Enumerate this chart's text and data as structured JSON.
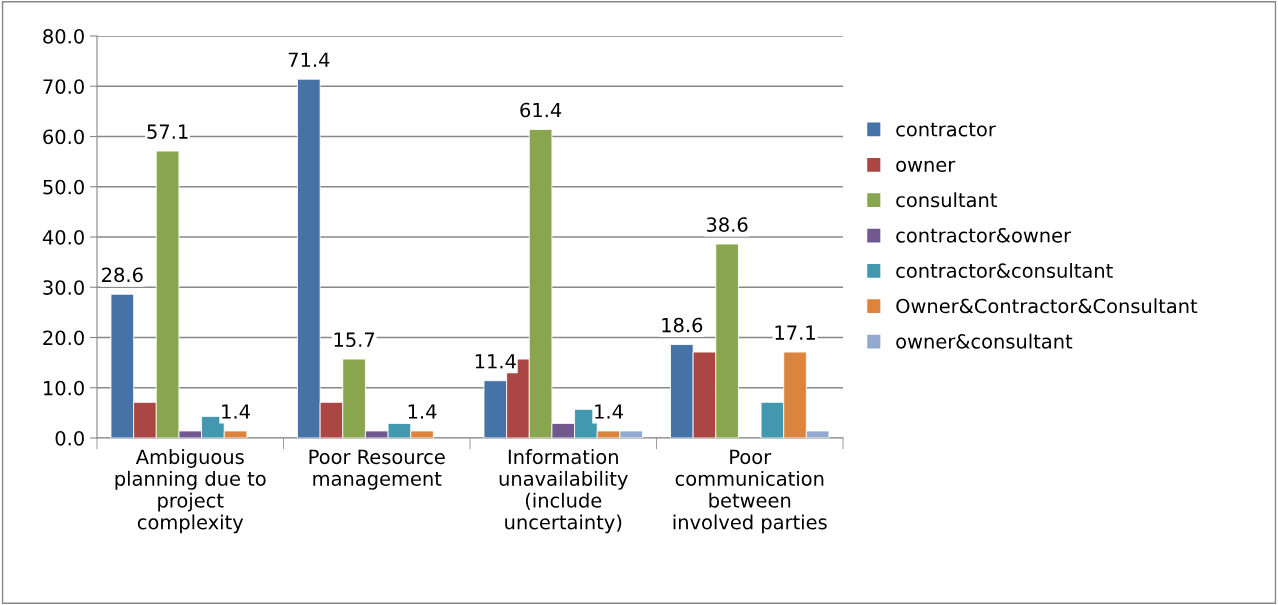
{
  "chart_data": {
    "type": "bar",
    "categories": [
      "Ambiguous\nplanning due to\nproject\ncomplexity",
      "Poor Resource\nmanagement",
      "Information\nunavailability\n(include\nuncertainty)",
      "Poor\ncommunication\nbetween\ninvolved parties"
    ],
    "series": [
      {
        "name": "contractor",
        "color": "#4572a7",
        "values": [
          28.6,
          71.4,
          11.4,
          18.6
        ],
        "value_labels": [
          "28.6",
          "71.4",
          "11.4",
          "18.6"
        ]
      },
      {
        "name": "owner",
        "color": "#aa4643",
        "values": [
          7.1,
          7.1,
          15.7,
          17.1
        ]
      },
      {
        "name": "consultant",
        "color": "#89a54e",
        "values": [
          57.1,
          15.7,
          61.4,
          38.6
        ],
        "value_labels": [
          "57.1",
          "15.7",
          "61.4",
          "38.6"
        ]
      },
      {
        "name": "contractor&owner",
        "color": "#71588f",
        "values": [
          1.4,
          1.4,
          2.9,
          null
        ]
      },
      {
        "name": "contractor&consultant",
        "color": "#4198af",
        "values": [
          4.3,
          2.9,
          5.7,
          7.1
        ]
      },
      {
        "name": "Owner&Contractor&Consultant",
        "color": "#db843d",
        "values": [
          1.4,
          1.4,
          1.4,
          17.1
        ],
        "value_labels": [
          "1.4",
          "1.4",
          "1.4",
          "17.1"
        ]
      },
      {
        "name": "owner&consultant",
        "color": "#93a9cf",
        "values": [
          null,
          null,
          1.4,
          1.4
        ]
      }
    ],
    "ylim": [
      0,
      80
    ],
    "yticks": [
      {
        "value": 0,
        "label": "0.0"
      },
      {
        "value": 10,
        "label": "10.0"
      },
      {
        "value": 20,
        "label": "20.0"
      },
      {
        "value": 30,
        "label": "30.0"
      },
      {
        "value": 40,
        "label": "40.0"
      },
      {
        "value": 50,
        "label": "50.0"
      },
      {
        "value": 60,
        "label": "60.0"
      },
      {
        "value": 70,
        "label": "70.0"
      },
      {
        "value": 80,
        "label": "80.0"
      }
    ],
    "grid": "y",
    "legend": "right"
  }
}
